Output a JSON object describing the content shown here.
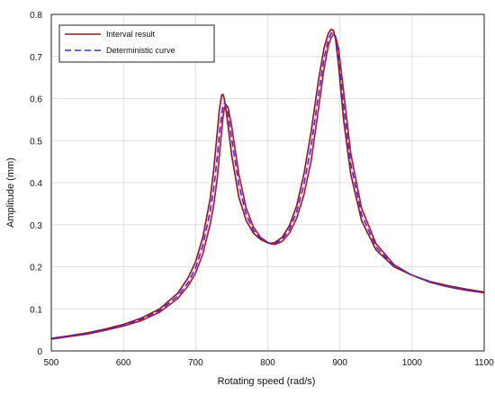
{
  "chart_data": {
    "type": "line",
    "xlabel": "Rotating speed (rad/s)",
    "ylabel": "Amplitude (mm)",
    "xlim": [
      500,
      1100
    ],
    "ylim": [
      0,
      0.8
    ],
    "grid": true,
    "legend_position": "top-left",
    "x_ticks": [
      "500",
      "600",
      "700",
      "800",
      "900",
      "1000",
      "1100"
    ],
    "y_ticks": [
      "0",
      "0.1",
      "0.2",
      "0.3",
      "0.4",
      "0.5",
      "0.6",
      "0.7",
      "0.8"
    ],
    "x": [
      500,
      525,
      550,
      575,
      600,
      625,
      650,
      675,
      690,
      700,
      710,
      720,
      725,
      730,
      733,
      736,
      738,
      740,
      742,
      745,
      750,
      760,
      770,
      780,
      790,
      800,
      805,
      810,
      820,
      830,
      840,
      850,
      860,
      870,
      878,
      884,
      888,
      891,
      894,
      898,
      905,
      915,
      930,
      950,
      975,
      1000,
      1025,
      1050,
      1075,
      1100
    ],
    "series": [
      {
        "name": "Interval result",
        "role": "upper",
        "color": "#8b1a1a",
        "values": [
          0.03,
          0.036,
          0.043,
          0.052,
          0.063,
          0.078,
          0.1,
          0.137,
          0.175,
          0.212,
          0.27,
          0.36,
          0.43,
          0.52,
          0.575,
          0.608,
          0.61,
          0.598,
          0.575,
          0.535,
          0.465,
          0.365,
          0.31,
          0.28,
          0.265,
          0.257,
          0.256,
          0.258,
          0.27,
          0.298,
          0.345,
          0.42,
          0.52,
          0.64,
          0.72,
          0.755,
          0.765,
          0.762,
          0.74,
          0.68,
          0.55,
          0.42,
          0.31,
          0.24,
          0.2,
          0.18,
          0.165,
          0.155,
          0.147,
          0.14
        ]
      },
      {
        "name": "Interval result",
        "role": "lower",
        "color": "#c8102e",
        "values": [
          0.028,
          0.034,
          0.04,
          0.049,
          0.059,
          0.072,
          0.092,
          0.124,
          0.155,
          0.185,
          0.23,
          0.3,
          0.345,
          0.41,
          0.465,
          0.52,
          0.555,
          0.578,
          0.585,
          0.58,
          0.535,
          0.42,
          0.34,
          0.295,
          0.27,
          0.258,
          0.254,
          0.253,
          0.26,
          0.28,
          0.315,
          0.37,
          0.45,
          0.57,
          0.67,
          0.725,
          0.745,
          0.752,
          0.748,
          0.72,
          0.62,
          0.47,
          0.34,
          0.255,
          0.205,
          0.18,
          0.163,
          0.152,
          0.144,
          0.138
        ]
      },
      {
        "name": "Deterministic curve",
        "role": "nominal",
        "color": "#3333cc",
        "values": [
          0.029,
          0.035,
          0.042,
          0.05,
          0.061,
          0.075,
          0.096,
          0.13,
          0.163,
          0.197,
          0.25,
          0.33,
          0.385,
          0.46,
          0.515,
          0.56,
          0.582,
          0.59,
          0.585,
          0.565,
          0.505,
          0.395,
          0.325,
          0.287,
          0.267,
          0.257,
          0.255,
          0.255,
          0.265,
          0.289,
          0.33,
          0.395,
          0.485,
          0.605,
          0.695,
          0.74,
          0.755,
          0.757,
          0.745,
          0.7,
          0.585,
          0.445,
          0.325,
          0.247,
          0.202,
          0.18,
          0.164,
          0.153,
          0.145,
          0.139
        ]
      }
    ],
    "legend": [
      {
        "label": "Interval result",
        "style": "solid",
        "color": "#8b1a1a"
      },
      {
        "label": "Deterministic curve",
        "style": "dashed",
        "color": "#3333cc"
      }
    ]
  }
}
